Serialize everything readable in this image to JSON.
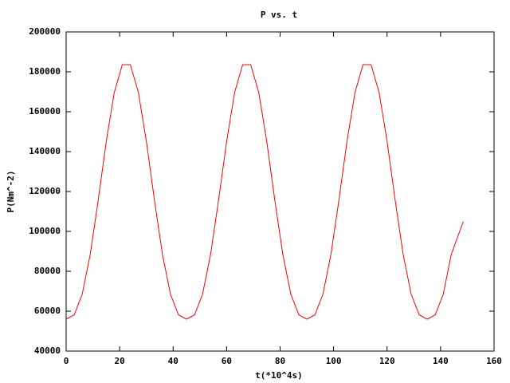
{
  "chart_data": {
    "type": "line",
    "title": "P vs. t",
    "x_label": "t(*10^4s)",
    "y_label": "P(Nm^-2)",
    "x": [
      0,
      3,
      6,
      9,
      12,
      15,
      18,
      21,
      24,
      27,
      30,
      33,
      36,
      39,
      42,
      45,
      48,
      51,
      54,
      57,
      60,
      63,
      66,
      69,
      72,
      75,
      78,
      81,
      84,
      87,
      90,
      93,
      96,
      99,
      102,
      105,
      108,
      111,
      114,
      117,
      120,
      123,
      126,
      129,
      132,
      135,
      138,
      141,
      144,
      148.5
    ],
    "series": [
      {
        "color": "#ff0000",
        "values": [
          56000,
          58200,
          68500,
          88500,
          115800,
          145100,
          169700,
          183600,
          183600,
          169700,
          145100,
          115800,
          88500,
          68500,
          58200,
          56000,
          58200,
          68500,
          88500,
          115800,
          145100,
          169700,
          183600,
          183600,
          169700,
          145100,
          115800,
          88500,
          68500,
          58200,
          56000,
          58200,
          68500,
          88500,
          115800,
          145100,
          169700,
          183600,
          183600,
          169700,
          145100,
          115800,
          88500,
          68500,
          58200,
          56000,
          58200,
          68500,
          88500,
          105000
        ]
      }
    ],
    "xlim": [
      0,
      160
    ],
    "xticks": [
      0,
      20,
      40,
      60,
      80,
      100,
      120,
      140,
      160
    ],
    "ylim": [
      40000,
      200000
    ],
    "yticks": [
      40000,
      60000,
      80000,
      100000,
      120000,
      140000,
      160000,
      180000,
      200000
    ],
    "grid": false
  }
}
